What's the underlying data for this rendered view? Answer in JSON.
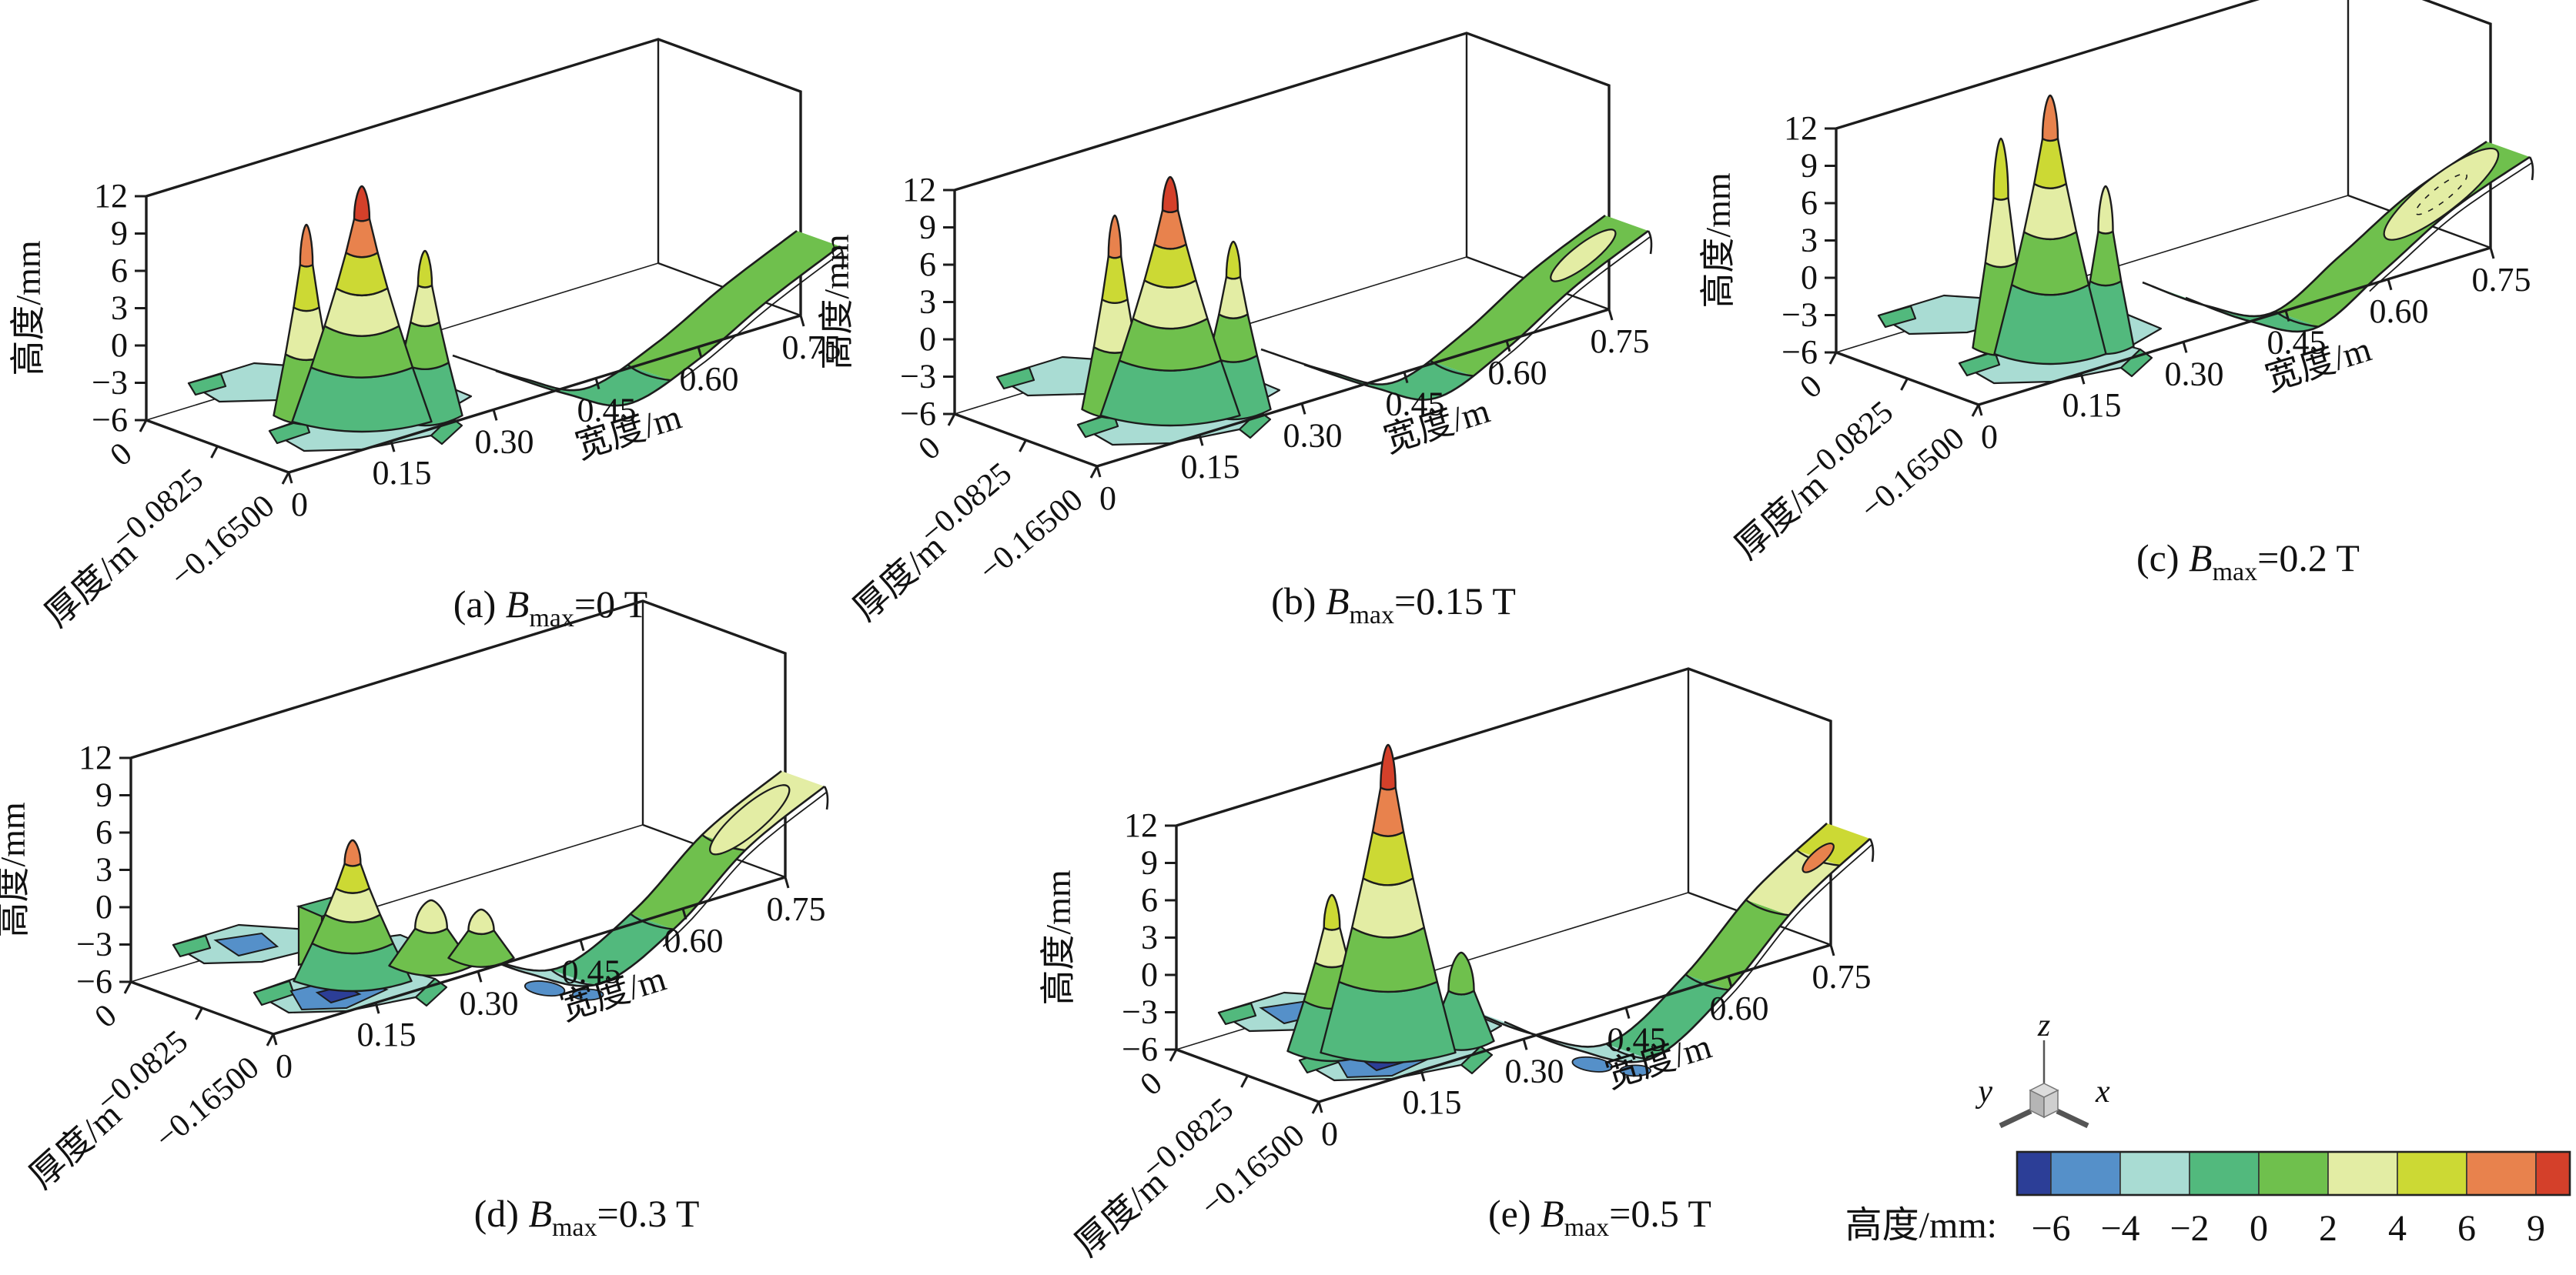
{
  "figure": {
    "background": "#ffffff",
    "outline_color": "#1c1c1c"
  },
  "chart_data": {
    "type": "surface",
    "description": "Five 3D banded-contour surface plots of strip height vs width and thickness for different maximum magnetic flux densities",
    "shared_axes": {
      "z_axis": {
        "label": "高度/mm",
        "ticks": [
          "12",
          "9",
          "6",
          "3",
          "0",
          "−3",
          "−6"
        ],
        "range": [
          -6,
          12
        ]
      },
      "x_axis": {
        "label": "宽度/m",
        "ticks": [
          "0",
          "0.15",
          "0.30",
          "0.45",
          "0.60",
          "0.75"
        ],
        "range": [
          0,
          0.75
        ]
      },
      "y_axis": {
        "label": "厚度/m",
        "ticks": [
          "0",
          "−0.0825",
          "−0.16500"
        ],
        "range": [
          -0.165,
          0
        ]
      }
    },
    "subplots": [
      {
        "id": "a",
        "caption": {
          "prefix": "(a) ",
          "symbol": "B",
          "subscript": "max",
          "suffix": "=0 T"
        },
        "surface_summary": {
          "left_flat_region_mm": "−4…−2",
          "peak_cap": "red (>9 mm)",
          "secondary_peaks": 2,
          "strip_end_band_mm": "0…2",
          "deep_blue_patches": false,
          "end_contour_lens": "none"
        }
      },
      {
        "id": "b",
        "caption": {
          "prefix": "(b) ",
          "symbol": "B",
          "subscript": "max",
          "suffix": "=0.15 T"
        },
        "surface_summary": {
          "left_flat_region_mm": "−4…−2",
          "peak_cap": "red (>9 mm)",
          "secondary_peaks": 2,
          "strip_end_band_mm": "2…4",
          "deep_blue_patches": false,
          "end_contour_lens": "small pale"
        }
      },
      {
        "id": "c",
        "caption": {
          "prefix": "(c) ",
          "symbol": "B",
          "subscript": "max",
          "suffix": "=0.2 T"
        },
        "surface_summary": {
          "left_flat_region_mm": "−4…−2",
          "peak_cap": "orange (6…9 mm)",
          "secondary_peaks": 2,
          "strip_end_band_mm": "2…4",
          "deep_blue_patches": false,
          "end_contour_lens": "large pale"
        }
      },
      {
        "id": "d",
        "caption": {
          "prefix": "(d) ",
          "symbol": "B",
          "subscript": "max",
          "suffix": "=0.3 T"
        },
        "surface_summary": {
          "left_flat_region_mm": "−6…−2",
          "peak_cap": "orange (6…9 mm)",
          "secondary_peaks": 2,
          "strip_end_band_mm": "2…4",
          "deep_blue_patches": true,
          "end_contour_lens": "pale"
        }
      },
      {
        "id": "e",
        "caption": {
          "prefix": "(e) ",
          "symbol": "B",
          "subscript": "max",
          "suffix": "=0.5 T"
        },
        "surface_summary": {
          "left_flat_region_mm": "−6…−2",
          "peak_cap": "red (>9 mm)",
          "secondary_peaks": 2,
          "strip_end_band_mm": "4…6",
          "deep_blue_patches": true,
          "end_contour_lens": "orange spot"
        }
      }
    ],
    "colorbar": {
      "title": "高度/mm:",
      "tick_labels": [
        "−6",
        "−4",
        "−2",
        "0",
        "2",
        "4",
        "6",
        "9"
      ],
      "band_colors": [
        "#2c3e97",
        "#5590c9",
        "#a9dcd3",
        "#52b97d",
        "#6fc04d",
        "#e3eda4",
        "#ccd934",
        "#e8824d",
        "#d4402a"
      ]
    },
    "triad": {
      "x_label": "x",
      "y_label": "y",
      "z_label": "z"
    }
  }
}
